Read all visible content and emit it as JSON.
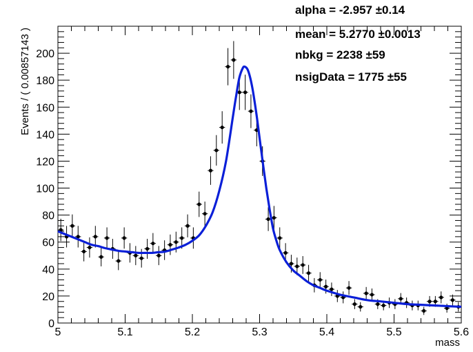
{
  "chart_data": {
    "type": "scatter",
    "title": "",
    "xlabel": "mass",
    "ylabel": "Events / ( 0.00857143 )",
    "xlim": [
      5.0,
      5.6
    ],
    "ylim": [
      0,
      220
    ],
    "x_ticks": [
      5.0,
      5.1,
      5.2,
      5.3,
      5.4,
      5.5,
      5.6
    ],
    "x_tick_labels": [
      "5",
      "5.1",
      "5.2",
      "5.3",
      "5.4",
      "5.5",
      "5.6"
    ],
    "y_ticks": [
      0,
      20,
      40,
      60,
      80,
      100,
      120,
      140,
      160,
      180,
      200
    ],
    "y_tick_labels": [
      "0",
      "20",
      "40",
      "60",
      "80",
      "100",
      "120",
      "140",
      "160",
      "180",
      "200"
    ],
    "bin_width": 0.00857143,
    "data_points": {
      "x": [
        5.0043,
        5.0129,
        5.0214,
        5.03,
        5.0386,
        5.0471,
        5.0557,
        5.0643,
        5.0729,
        5.0814,
        5.09,
        5.0986,
        5.1071,
        5.1157,
        5.1243,
        5.1329,
        5.1414,
        5.15,
        5.1586,
        5.1671,
        5.1757,
        5.1843,
        5.1929,
        5.2014,
        5.21,
        5.2186,
        5.2271,
        5.2357,
        5.2443,
        5.2529,
        5.2614,
        5.27,
        5.2786,
        5.2871,
        5.2957,
        5.3043,
        5.3129,
        5.3214,
        5.33,
        5.3386,
        5.3471,
        5.3557,
        5.3643,
        5.3729,
        5.3814,
        5.39,
        5.3986,
        5.4071,
        5.4157,
        5.4243,
        5.4329,
        5.4414,
        5.45,
        5.4586,
        5.4671,
        5.4757,
        5.4843,
        5.4929,
        5.5014,
        5.51,
        5.5186,
        5.5271,
        5.5357,
        5.5443,
        5.5529,
        5.5614,
        5.57,
        5.5786,
        5.5871,
        5.5957
      ],
      "y": [
        69,
        64,
        72,
        64,
        53,
        56,
        64,
        49,
        63,
        55,
        46,
        63,
        52,
        50,
        48,
        55,
        59,
        50,
        54,
        58,
        60,
        63,
        72,
        63,
        88,
        81,
        113,
        128,
        145,
        190,
        195,
        171,
        171,
        157,
        143,
        120,
        77,
        78,
        63,
        52,
        44,
        42,
        43,
        37,
        28,
        32,
        27,
        25,
        20,
        19,
        26,
        14,
        12,
        22,
        21,
        14,
        13,
        15,
        14,
        18,
        15,
        13,
        13,
        9,
        16,
        16,
        19,
        11,
        17,
        12
      ],
      "yerr": [
        8.3,
        8.0,
        8.5,
        8.0,
        7.3,
        7.5,
        8.0,
        7.0,
        7.9,
        7.4,
        6.8,
        7.9,
        7.2,
        7.1,
        6.9,
        7.4,
        7.7,
        7.1,
        7.3,
        7.6,
        7.7,
        7.9,
        8.5,
        7.9,
        9.4,
        9.0,
        10.6,
        11.3,
        12.0,
        13.8,
        14.0,
        13.1,
        13.1,
        12.5,
        12.0,
        11.0,
        8.8,
        8.8,
        7.9,
        7.2,
        6.6,
        6.5,
        6.6,
        6.1,
        5.3,
        5.7,
        5.2,
        5.0,
        4.5,
        4.4,
        5.1,
        3.7,
        3.5,
        4.7,
        4.6,
        3.7,
        3.6,
        3.9,
        3.7,
        4.2,
        3.9,
        3.6,
        3.6,
        3.0,
        4.0,
        4.0,
        4.4,
        3.3,
        4.1,
        3.5
      ]
    },
    "fit_curve": {
      "x": [
        5.0,
        5.01,
        5.02,
        5.03,
        5.04,
        5.05,
        5.06,
        5.07,
        5.08,
        5.09,
        5.1,
        5.11,
        5.12,
        5.13,
        5.14,
        5.15,
        5.16,
        5.17,
        5.18,
        5.19,
        5.2,
        5.21,
        5.22,
        5.23,
        5.24,
        5.25,
        5.26,
        5.265,
        5.27,
        5.275,
        5.278,
        5.282,
        5.286,
        5.29,
        5.295,
        5.3,
        5.305,
        5.31,
        5.315,
        5.32,
        5.325,
        5.33,
        5.34,
        5.35,
        5.36,
        5.37,
        5.38,
        5.39,
        5.4,
        5.42,
        5.44,
        5.46,
        5.48,
        5.5,
        5.52,
        5.54,
        5.56,
        5.58,
        5.6
      ],
      "y": [
        68,
        66,
        64,
        62,
        60,
        58,
        57,
        55.5,
        54.5,
        53.5,
        53,
        52.5,
        52,
        52,
        52,
        52.5,
        53,
        54.5,
        56,
        58,
        61,
        65,
        72,
        82,
        98,
        120,
        152,
        168,
        182,
        189,
        190,
        188,
        182,
        172,
        156,
        137,
        118,
        100,
        84,
        70,
        61,
        54,
        45,
        39,
        35,
        31,
        28,
        26,
        24,
        21,
        19,
        17,
        16,
        15,
        14,
        13.5,
        13,
        12.5,
        12
      ]
    },
    "colors": {
      "fit_curve": "#0a1fd8",
      "data_points": "#000000"
    },
    "parameters": [
      {
        "label": "alpha",
        "value": "-2.957",
        "error": "0.14"
      },
      {
        "label": "mean",
        "value": "5.2770",
        "error": "0.0013"
      },
      {
        "label": "nbkg",
        "value": "2238",
        "error": "59"
      },
      {
        "label": "nsigData",
        "value": "1775",
        "error": "55"
      }
    ]
  }
}
